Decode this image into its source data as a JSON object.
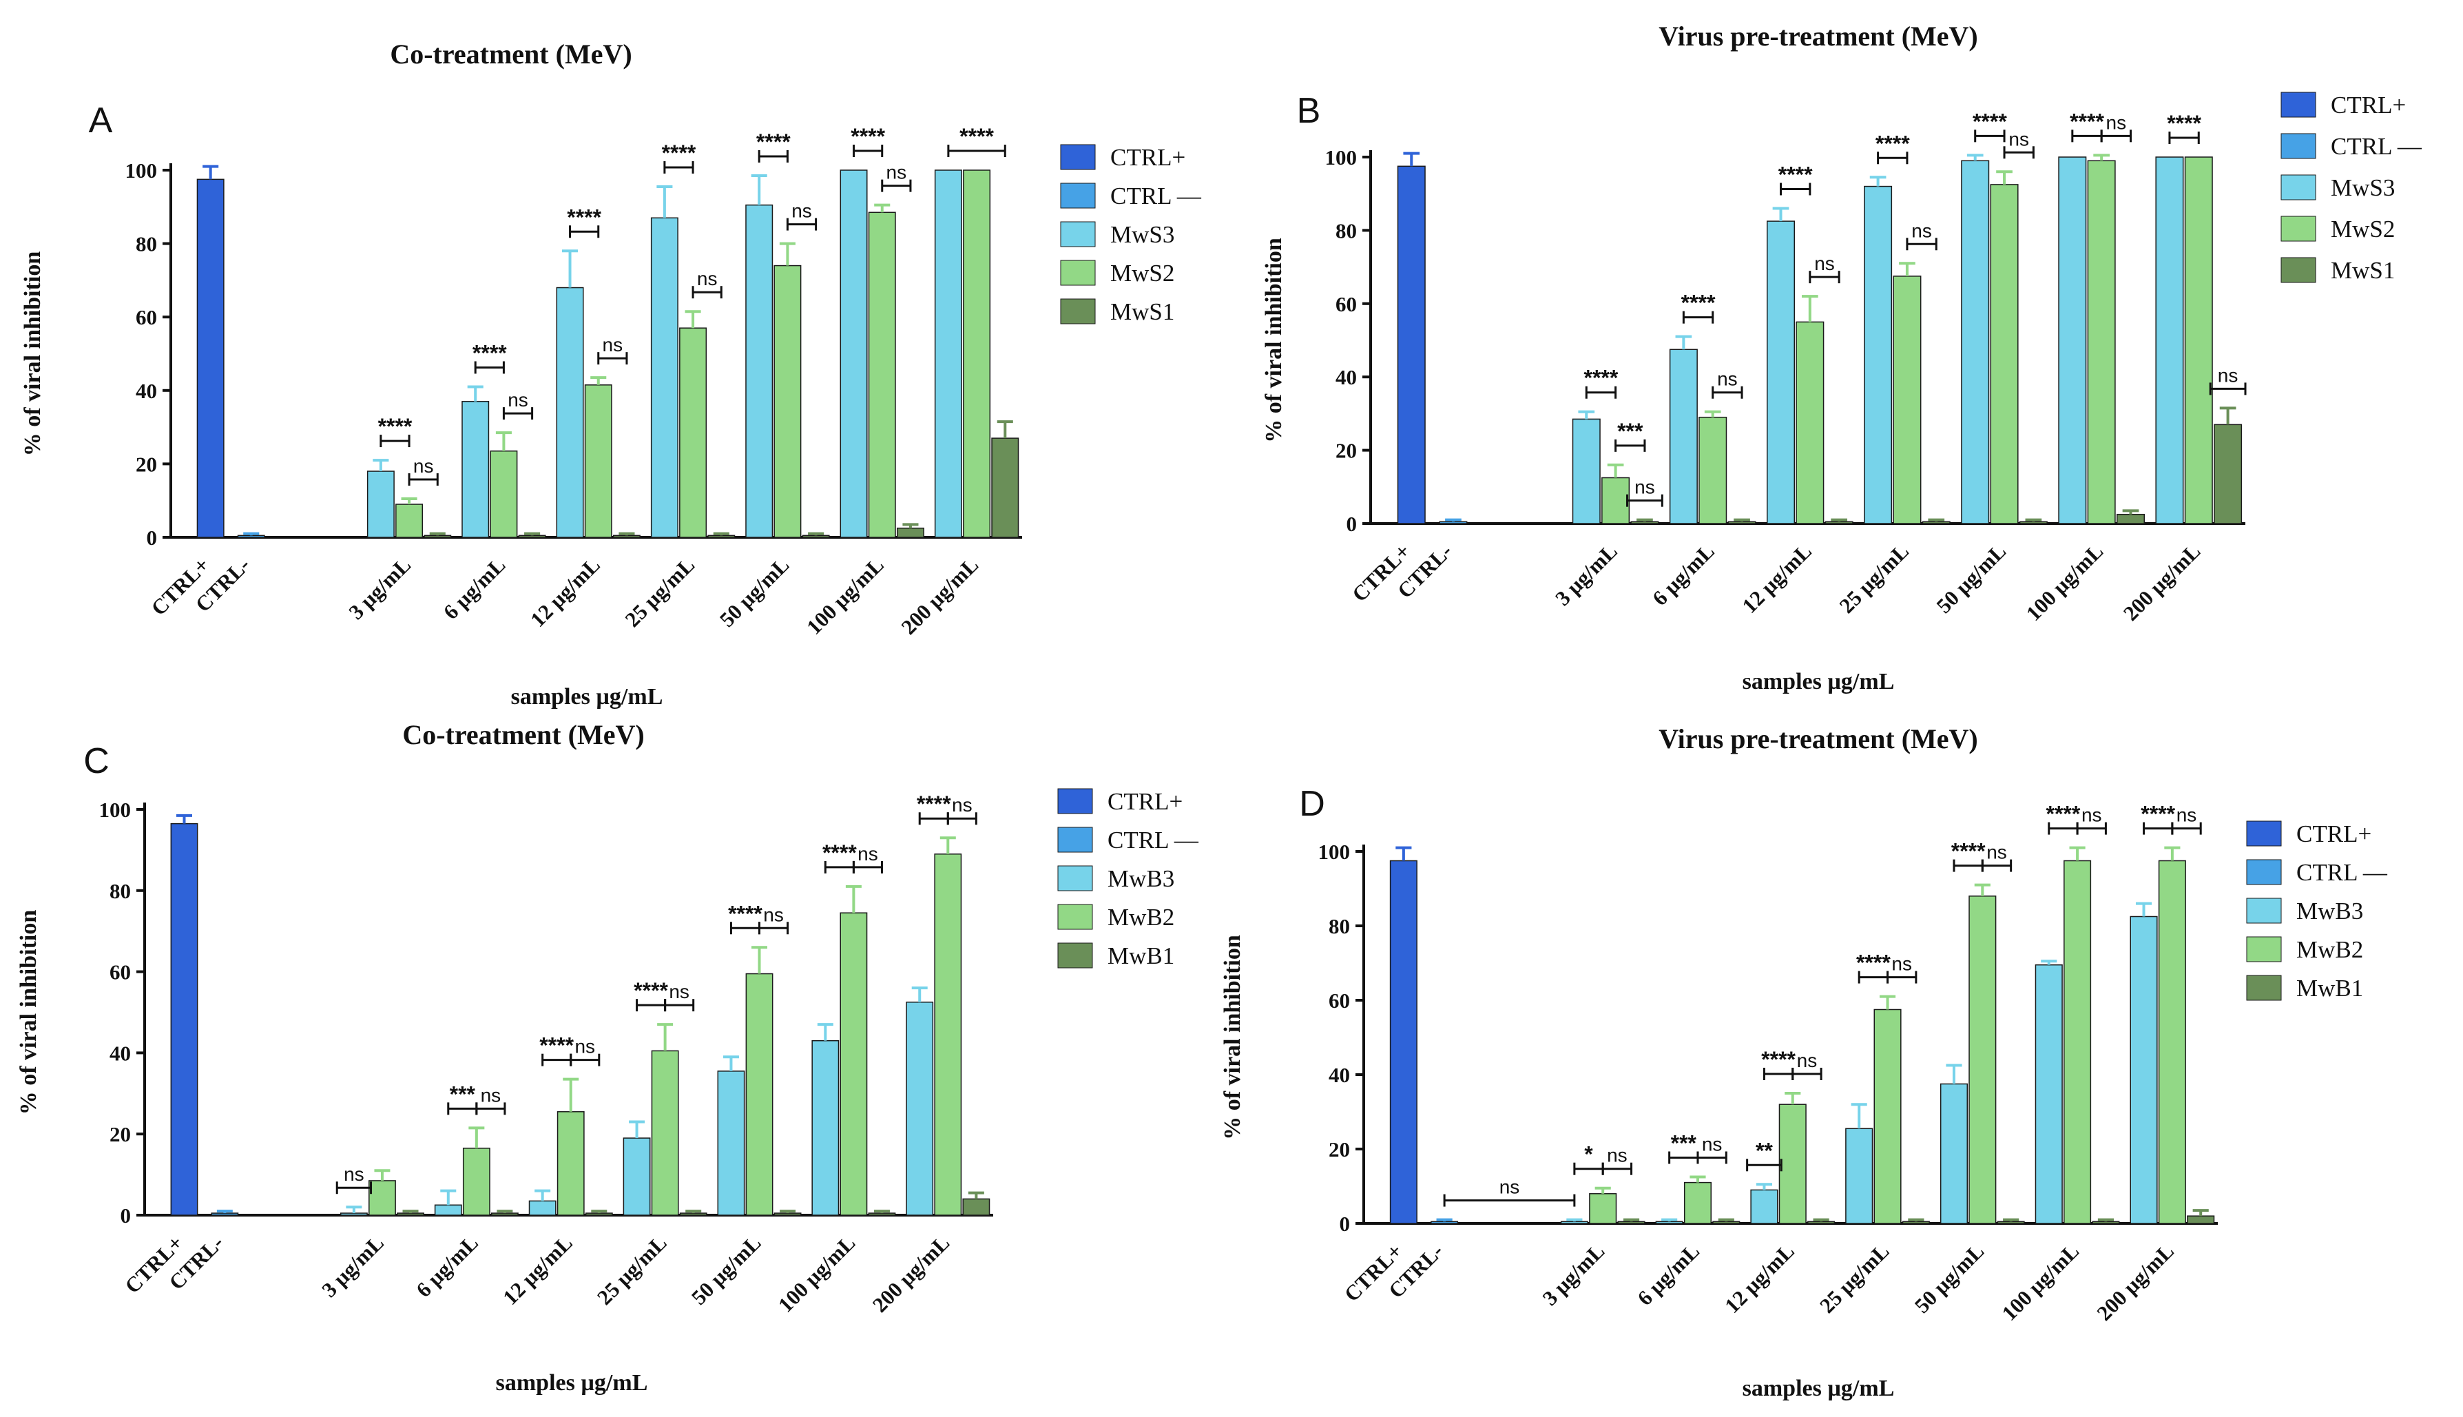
{
  "chart_data": [
    {
      "panel": "A",
      "type": "bar",
      "title": "Co-treatment (MeV)",
      "xlabel": "samples µg/mL",
      "ylabel": "% of viral inhibition",
      "ylim": [
        0,
        100
      ],
      "yticks": [
        0,
        20,
        40,
        60,
        80,
        100
      ],
      "categories": [
        "CTRL+",
        "CTRL-",
        "3 µg/mL",
        "6 µg/mL",
        "12 µg/mL",
        "25 µg/mL",
        "50 µg/mL",
        "100 µg/mL",
        "200 µg/mL"
      ],
      "legend": [
        "CTRL+",
        "CTRL —",
        "MwS3",
        "MwS2",
        "MwS1"
      ],
      "legend_colors": [
        "#2f63d8",
        "#46a2e6",
        "#77d3ea",
        "#92d886",
        "#6a8f58"
      ],
      "series": [
        {
          "name": "CTRL+",
          "color": "#2f63d8",
          "values": [
            97.5,
            null,
            null,
            null,
            null,
            null,
            null,
            null,
            null
          ],
          "errors": [
            3.5,
            null,
            null,
            null,
            null,
            null,
            null,
            null,
            null
          ]
        },
        {
          "name": "CTRL —",
          "color": "#46a2e6",
          "values": [
            null,
            0.5,
            null,
            null,
            null,
            null,
            null,
            null,
            null
          ],
          "errors": [
            null,
            0.5,
            null,
            null,
            null,
            null,
            null,
            null,
            null
          ]
        },
        {
          "name": "MwS3",
          "color": "#77d3ea",
          "values": [
            null,
            null,
            18,
            37,
            68,
            87,
            90.5,
            100,
            100
          ],
          "errors": [
            null,
            null,
            3,
            4,
            10,
            8.5,
            8,
            0,
            0
          ]
        },
        {
          "name": "MwS2",
          "color": "#92d886",
          "values": [
            null,
            null,
            9,
            23.5,
            41.5,
            57,
            74,
            88.5,
            100
          ],
          "errors": [
            null,
            null,
            1.5,
            5,
            2,
            4.5,
            6,
            2,
            0
          ]
        },
        {
          "name": "MwS1",
          "color": "#6a8f58",
          "values": [
            null,
            null,
            0.5,
            0.5,
            0.5,
            0.5,
            0.5,
            2.5,
            27
          ],
          "errors": [
            null,
            null,
            0.5,
            0.5,
            0.5,
            0.5,
            0.5,
            1,
            4.5
          ]
        }
      ],
      "annotations": [
        {
          "label": "****",
          "from": "MwS3",
          "to": "MwS2",
          "category": 2
        },
        {
          "label": "ns",
          "from": "MwS2",
          "to": "MwS1",
          "category": 2
        },
        {
          "label": "****",
          "from": "MwS3",
          "to": "MwS2",
          "category": 3
        },
        {
          "label": "ns",
          "from": "MwS2",
          "to": "MwS1",
          "category": 3
        },
        {
          "label": "****",
          "from": "MwS3",
          "to": "MwS2",
          "category": 4
        },
        {
          "label": "ns",
          "from": "MwS2",
          "to": "MwS1",
          "category": 4
        },
        {
          "label": "****",
          "from": "MwS3",
          "to": "MwS2",
          "category": 5
        },
        {
          "label": "ns",
          "from": "MwS2",
          "to": "MwS1",
          "category": 5
        },
        {
          "label": "****",
          "from": "MwS3",
          "to": "MwS2",
          "category": 6
        },
        {
          "label": "ns",
          "from": "MwS2",
          "to": "MwS1",
          "category": 6
        },
        {
          "label": "****",
          "from": "MwS3",
          "to": "MwS2",
          "category": 7
        },
        {
          "label": "ns",
          "from": "MwS2",
          "to": "MwS1",
          "category": 7
        },
        {
          "label": "****",
          "from": "MwS3",
          "to": "MwS1",
          "category": 8
        }
      ]
    },
    {
      "panel": "B",
      "type": "bar",
      "title": "Virus pre-treatment (MeV)",
      "xlabel": "samples µg/mL",
      "ylabel": "% of viral inhibition",
      "ylim": [
        0,
        100
      ],
      "yticks": [
        0,
        20,
        40,
        60,
        80,
        100
      ],
      "categories": [
        "CTRL+",
        "CTRL-",
        "3 µg/mL",
        "6 µg/mL",
        "12 µg/mL",
        "25 µg/mL",
        "50 µg/mL",
        "100 µg/mL",
        "200 µg/mL"
      ],
      "legend": [
        "CTRL+",
        "CTRL —",
        "MwS3",
        "MwS2",
        "MwS1"
      ],
      "legend_colors": [
        "#2f63d8",
        "#46a2e6",
        "#77d3ea",
        "#92d886",
        "#6a8f58"
      ],
      "series": [
        {
          "name": "CTRL+",
          "color": "#2f63d8",
          "values": [
            97.5,
            null,
            null,
            null,
            null,
            null,
            null,
            null,
            null
          ],
          "errors": [
            3.5,
            null,
            null,
            null,
            null,
            null,
            null,
            null,
            null
          ]
        },
        {
          "name": "CTRL —",
          "color": "#46a2e6",
          "values": [
            null,
            0.5,
            null,
            null,
            null,
            null,
            null,
            null,
            null
          ],
          "errors": [
            null,
            0.5,
            null,
            null,
            null,
            null,
            null,
            null,
            null
          ]
        },
        {
          "name": "MwS3",
          "color": "#77d3ea",
          "values": [
            null,
            null,
            28.5,
            47.5,
            82.5,
            92,
            99,
            100,
            100
          ],
          "errors": [
            null,
            null,
            2,
            3.5,
            3.5,
            2.5,
            1.5,
            0,
            0
          ]
        },
        {
          "name": "MwS2",
          "color": "#92d886",
          "values": [
            null,
            null,
            12.5,
            29,
            55,
            67.5,
            92.5,
            99,
            100
          ],
          "errors": [
            null,
            null,
            3.5,
            1.5,
            7,
            3.5,
            3.5,
            1.5,
            0
          ]
        },
        {
          "name": "MwS1",
          "color": "#6a8f58",
          "values": [
            null,
            null,
            0.5,
            0.5,
            0.5,
            0.5,
            0.5,
            2.5,
            27
          ],
          "errors": [
            null,
            null,
            0.5,
            0.5,
            0.5,
            0.5,
            0.5,
            1,
            4.5
          ]
        }
      ],
      "annotations": [
        {
          "label": "****",
          "from": "MwS3",
          "to": "MwS2",
          "category": 2
        },
        {
          "label": "***",
          "from": "MwS2",
          "to": "MwS1",
          "category": 2
        },
        {
          "label": "ns",
          "from": "MwS1",
          "to": "MwS1",
          "category": 2
        },
        {
          "label": "****",
          "from": "MwS3",
          "to": "MwS2",
          "category": 3
        },
        {
          "label": "ns",
          "from": "MwS2",
          "to": "MwS1",
          "category": 3
        },
        {
          "label": "****",
          "from": "MwS3",
          "to": "MwS2",
          "category": 4
        },
        {
          "label": "ns",
          "from": "MwS2",
          "to": "MwS1",
          "category": 4
        },
        {
          "label": "****",
          "from": "MwS3",
          "to": "MwS2",
          "category": 5
        },
        {
          "label": "ns",
          "from": "MwS2",
          "to": "MwS1",
          "category": 5
        },
        {
          "label": "****",
          "from": "MwS3",
          "to": "MwS2",
          "category": 6
        },
        {
          "label": "ns",
          "from": "MwS2",
          "to": "MwS1",
          "category": 6
        },
        {
          "label": "****",
          "from": "MwS3",
          "to": "MwS2",
          "category": 7
        },
        {
          "label": "ns",
          "from": "MwS2",
          "to": "MwS1",
          "category": 7
        },
        {
          "label": "****",
          "from": "MwS3",
          "to": "MwS2",
          "category": 8
        },
        {
          "label": "ns",
          "from": "MwS1",
          "to": "MwS1",
          "category": 8
        }
      ]
    },
    {
      "panel": "C",
      "type": "bar",
      "title": "Co-treatment (MeV)",
      "xlabel": "samples µg/mL",
      "ylabel": "% of viral inhibition",
      "ylim": [
        0,
        100
      ],
      "yticks": [
        0,
        20,
        40,
        60,
        80,
        100
      ],
      "categories": [
        "CTRL+",
        "CTRL-",
        "3 µg/mL",
        "6 µg/mL",
        "12 µg/mL",
        "25 µg/mL",
        "50 µg/mL",
        "100 µg/mL",
        "200 µg/mL"
      ],
      "legend": [
        "CTRL+",
        "CTRL —",
        "MwB3",
        "MwB2",
        "MwB1"
      ],
      "legend_colors": [
        "#2f63d8",
        "#46a2e6",
        "#77d3ea",
        "#92d886",
        "#6a8f58"
      ],
      "series": [
        {
          "name": "CTRL+",
          "color": "#2f63d8",
          "values": [
            96.5,
            null,
            null,
            null,
            null,
            null,
            null,
            null,
            null
          ],
          "errors": [
            2,
            null,
            null,
            null,
            null,
            null,
            null,
            null,
            null
          ]
        },
        {
          "name": "CTRL —",
          "color": "#46a2e6",
          "values": [
            null,
            0.5,
            null,
            null,
            null,
            null,
            null,
            null,
            null
          ],
          "errors": [
            null,
            0.5,
            null,
            null,
            null,
            null,
            null,
            null,
            null
          ]
        },
        {
          "name": "MwB3",
          "color": "#77d3ea",
          "values": [
            null,
            null,
            0.5,
            2.5,
            3.5,
            19,
            35.5,
            43,
            52.5
          ],
          "errors": [
            null,
            null,
            1.5,
            3.5,
            2.5,
            4,
            3.5,
            4,
            3.5
          ]
        },
        {
          "name": "MwB2",
          "color": "#92d886",
          "values": [
            null,
            null,
            8.5,
            16.5,
            25.5,
            40.5,
            59.5,
            74.5,
            89
          ],
          "errors": [
            null,
            null,
            2.5,
            5,
            8,
            6.5,
            6.5,
            6.5,
            4
          ]
        },
        {
          "name": "MwB1",
          "color": "#6a8f58",
          "values": [
            null,
            null,
            0.5,
            0.5,
            0.5,
            0.5,
            0.5,
            0.5,
            4
          ],
          "errors": [
            null,
            null,
            0.5,
            0.5,
            0.5,
            0.5,
            0.5,
            0.5,
            1.5
          ]
        }
      ],
      "annotations": [
        {
          "label": "ns",
          "from": "MwB3",
          "to": "MwB3",
          "category": 2
        },
        {
          "label": "***",
          "from": "MwB3",
          "to": "MwB2",
          "category": 3
        },
        {
          "label": "ns",
          "from": "MwB2",
          "to": "MwB1",
          "category": 3
        },
        {
          "label": "****",
          "from": "MwB3",
          "to": "MwB2",
          "category": 4
        },
        {
          "label": "ns",
          "from": "MwB2",
          "to": "MwB1",
          "category": 4
        },
        {
          "label": "****",
          "from": "MwB3",
          "to": "MwB2",
          "category": 5
        },
        {
          "label": "ns",
          "from": "MwB2",
          "to": "MwB1",
          "category": 5
        },
        {
          "label": "****",
          "from": "MwB3",
          "to": "MwB2",
          "category": 6
        },
        {
          "label": "ns",
          "from": "MwB2",
          "to": "MwB1",
          "category": 6
        },
        {
          "label": "****",
          "from": "MwB3",
          "to": "MwB2",
          "category": 7
        },
        {
          "label": "ns",
          "from": "MwB2",
          "to": "MwB1",
          "category": 7
        },
        {
          "label": "****",
          "from": "MwB3",
          "to": "MwB2",
          "category": 8
        },
        {
          "label": "ns",
          "from": "MwB2",
          "to": "MwB1",
          "category": 8
        }
      ]
    },
    {
      "panel": "D",
      "type": "bar",
      "title": "Virus pre-treatment (MeV)",
      "xlabel": "samples µg/mL",
      "ylabel": "% of viral inhibition",
      "ylim": [
        0,
        100
      ],
      "yticks": [
        0,
        20,
        40,
        60,
        80,
        100
      ],
      "categories": [
        "CTRL+",
        "CTRL-",
        "3 µg/mL",
        "6 µg/mL",
        "12 µg/mL",
        "25 µg/mL",
        "50 µg/mL",
        "100 µg/mL",
        "200 µg/mL"
      ],
      "legend": [
        "CTRL+",
        "CTRL —",
        "MwB3",
        "MwB2",
        "MwB1"
      ],
      "legend_colors": [
        "#2f63d8",
        "#46a2e6",
        "#77d3ea",
        "#92d886",
        "#6a8f58"
      ],
      "series": [
        {
          "name": "CTRL+",
          "color": "#2f63d8",
          "values": [
            97.5,
            null,
            null,
            null,
            null,
            null,
            null,
            null,
            null
          ],
          "errors": [
            3.5,
            null,
            null,
            null,
            null,
            null,
            null,
            null,
            null
          ]
        },
        {
          "name": "CTRL —",
          "color": "#46a2e6",
          "values": [
            null,
            0.5,
            null,
            null,
            null,
            null,
            null,
            null,
            null
          ],
          "errors": [
            null,
            0.5,
            null,
            null,
            null,
            null,
            null,
            null,
            null
          ]
        },
        {
          "name": "MwB3",
          "color": "#77d3ea",
          "values": [
            null,
            null,
            0.5,
            0.5,
            9,
            25.5,
            37.5,
            69.5,
            82.5
          ],
          "errors": [
            null,
            null,
            0.5,
            0.5,
            1.5,
            6.5,
            5,
            1,
            3.5
          ]
        },
        {
          "name": "MwB2",
          "color": "#92d886",
          "values": [
            null,
            null,
            8,
            11,
            32,
            57.5,
            88,
            97.5,
            97.5
          ],
          "errors": [
            null,
            null,
            1.5,
            1.5,
            3,
            3.5,
            3,
            3.5,
            3.5
          ]
        },
        {
          "name": "MwB1",
          "color": "#6a8f58",
          "values": [
            null,
            null,
            0.5,
            0.5,
            0.5,
            0.5,
            0.5,
            0.5,
            2
          ],
          "errors": [
            null,
            null,
            0.5,
            0.5,
            0.5,
            0.5,
            0.5,
            0.5,
            1.5
          ]
        }
      ],
      "annotations": [
        {
          "label": "ns",
          "from": "CTRL —",
          "to": "MwB3",
          "category": 2
        },
        {
          "label": "*",
          "from": "MwB3",
          "to": "MwB2",
          "category": 2
        },
        {
          "label": "ns",
          "from": "MwB2",
          "to": "MwB1",
          "category": 2
        },
        {
          "label": "***",
          "from": "MwB3",
          "to": "MwB2",
          "category": 3
        },
        {
          "label": "ns",
          "from": "MwB2",
          "to": "MwB1",
          "category": 3
        },
        {
          "label": "**",
          "from": "MwB3",
          "to": "MwB3",
          "category": 4
        },
        {
          "label": "****",
          "from": "MwB3",
          "to": "MwB2",
          "category": 4
        },
        {
          "label": "ns",
          "from": "MwB2",
          "to": "MwB1",
          "category": 4
        },
        {
          "label": "****",
          "from": "MwB3",
          "to": "MwB2",
          "category": 5
        },
        {
          "label": "ns",
          "from": "MwB2",
          "to": "MwB1",
          "category": 5
        },
        {
          "label": "****",
          "from": "MwB3",
          "to": "MwB2",
          "category": 6
        },
        {
          "label": "ns",
          "from": "MwB2",
          "to": "MwB1",
          "category": 6
        },
        {
          "label": "****",
          "from": "MwB3",
          "to": "MwB2",
          "category": 7
        },
        {
          "label": "ns",
          "from": "MwB2",
          "to": "MwB1",
          "category": 7
        },
        {
          "label": "****",
          "from": "MwB3",
          "to": "MwB2",
          "category": 8
        },
        {
          "label": "ns",
          "from": "MwB2",
          "to": "MwB1",
          "category": 8
        }
      ]
    }
  ]
}
